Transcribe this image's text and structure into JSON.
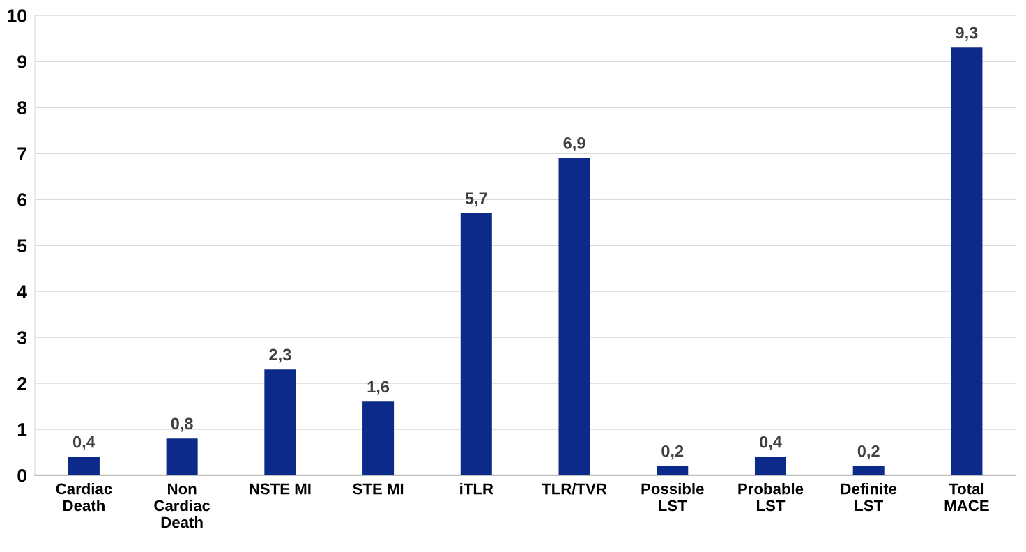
{
  "chart_data": {
    "type": "bar",
    "categories": [
      "Cardiac\nDeath",
      "Non\nCardiac\nDeath",
      "NSTE MI",
      "STE MI",
      "iTLR",
      "TLR/TVR",
      "Possible\nLST",
      "Probable\nLST",
      "Definite\nLST",
      "Total\nMACE"
    ],
    "values": [
      0.4,
      0.8,
      2.3,
      1.6,
      5.7,
      6.9,
      0.2,
      0.4,
      0.2,
      9.3
    ],
    "value_labels": [
      "0,4",
      "0,8",
      "2,3",
      "1,6",
      "5,7",
      "6,9",
      "0,2",
      "0,4",
      "0,2",
      "9,3"
    ],
    "color": "#0b2a8a",
    "ylim": [
      0,
      10
    ],
    "yticks": [
      0,
      1,
      2,
      3,
      4,
      5,
      6,
      7,
      8,
      9,
      10
    ],
    "grid": "y"
  }
}
